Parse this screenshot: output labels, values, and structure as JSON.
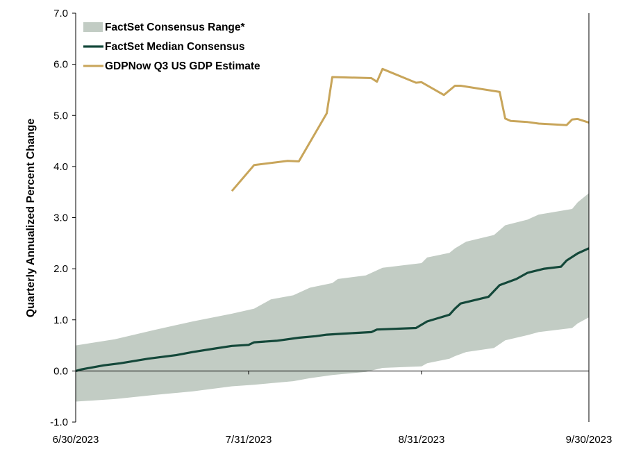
{
  "chart_data": {
    "type": "line",
    "title": "",
    "xlabel": "",
    "ylabel": "Quarterly Annualized Percent Change",
    "ylim": [
      -1.0,
      7.0
    ],
    "y_ticks": [
      "7.0",
      "6.0",
      "5.0",
      "4.0",
      "3.0",
      "2.0",
      "1.0",
      "0.0",
      "-1.0"
    ],
    "x_ticks": [
      "6/30/2023",
      "7/31/2023",
      "8/31/2023",
      "9/30/2023"
    ],
    "xlim": [
      "2023-06-30",
      "2023-09-30"
    ],
    "grid": false,
    "legend": {
      "placement": "top-left",
      "items": [
        {
          "label": "FactSet Consensus Range*",
          "kind": "area",
          "color": "#c2ccc4"
        },
        {
          "label": "FactSet Median Consensus",
          "kind": "line",
          "color": "#14483a"
        },
        {
          "label": "GDPNow Q3 US GDP Estimate",
          "kind": "line",
          "color": "#c8a55a"
        }
      ]
    },
    "series": [
      {
        "name": "FactSet Consensus Range*",
        "type": "area",
        "color": "#c2ccc4",
        "points": [
          {
            "x": "2023-06-30",
            "low": -0.6,
            "high": 0.5
          },
          {
            "x": "2023-07-07",
            "low": -0.55,
            "high": 0.62
          },
          {
            "x": "2023-07-14",
            "low": -0.47,
            "high": 0.8
          },
          {
            "x": "2023-07-21",
            "low": -0.4,
            "high": 0.97
          },
          {
            "x": "2023-07-28",
            "low": -0.3,
            "high": 1.12
          },
          {
            "x": "2023-08-01",
            "low": -0.27,
            "high": 1.22
          },
          {
            "x": "2023-08-04",
            "low": -0.24,
            "high": 1.4
          },
          {
            "x": "2023-08-08",
            "low": -0.2,
            "high": 1.48
          },
          {
            "x": "2023-08-11",
            "low": -0.14,
            "high": 1.63
          },
          {
            "x": "2023-08-15",
            "low": -0.08,
            "high": 1.72
          },
          {
            "x": "2023-08-16",
            "low": -0.07,
            "high": 1.8
          },
          {
            "x": "2023-08-21",
            "low": -0.02,
            "high": 1.87
          },
          {
            "x": "2023-08-24",
            "low": 0.06,
            "high": 2.02
          },
          {
            "x": "2023-08-31",
            "low": 0.09,
            "high": 2.11
          },
          {
            "x": "2023-09-01",
            "low": 0.15,
            "high": 2.22
          },
          {
            "x": "2023-09-05",
            "low": 0.24,
            "high": 2.31
          },
          {
            "x": "2023-09-06",
            "low": 0.29,
            "high": 2.4
          },
          {
            "x": "2023-09-08",
            "low": 0.37,
            "high": 2.53
          },
          {
            "x": "2023-09-13",
            "low": 0.45,
            "high": 2.66
          },
          {
            "x": "2023-09-15",
            "low": 0.6,
            "high": 2.85
          },
          {
            "x": "2023-09-19",
            "low": 0.7,
            "high": 2.96
          },
          {
            "x": "2023-09-21",
            "low": 0.76,
            "high": 3.06
          },
          {
            "x": "2023-09-27",
            "low": 0.84,
            "high": 3.17
          },
          {
            "x": "2023-09-28",
            "low": 0.93,
            "high": 3.3
          },
          {
            "x": "2023-09-30",
            "low": 1.05,
            "high": 3.48
          }
        ]
      },
      {
        "name": "FactSet Median Consensus",
        "type": "line",
        "color": "#14483a",
        "points": [
          {
            "x": "2023-06-30",
            "y": 0.0
          },
          {
            "x": "2023-07-01",
            "y": 0.03
          },
          {
            "x": "2023-07-05",
            "y": 0.11
          },
          {
            "x": "2023-07-08",
            "y": 0.15
          },
          {
            "x": "2023-07-13",
            "y": 0.24
          },
          {
            "x": "2023-07-18",
            "y": 0.31
          },
          {
            "x": "2023-07-21",
            "y": 0.37
          },
          {
            "x": "2023-07-25",
            "y": 0.44
          },
          {
            "x": "2023-07-28",
            "y": 0.49
          },
          {
            "x": "2023-07-31",
            "y": 0.51
          },
          {
            "x": "2023-08-01",
            "y": 0.56
          },
          {
            "x": "2023-08-05",
            "y": 0.59
          },
          {
            "x": "2023-08-09",
            "y": 0.65
          },
          {
            "x": "2023-08-12",
            "y": 0.68
          },
          {
            "x": "2023-08-14",
            "y": 0.71
          },
          {
            "x": "2023-08-17",
            "y": 0.73
          },
          {
            "x": "2023-08-22",
            "y": 0.76
          },
          {
            "x": "2023-08-23",
            "y": 0.81
          },
          {
            "x": "2023-08-30",
            "y": 0.84
          },
          {
            "x": "2023-09-01",
            "y": 0.97
          },
          {
            "x": "2023-09-05",
            "y": 1.1
          },
          {
            "x": "2023-09-06",
            "y": 1.22
          },
          {
            "x": "2023-09-07",
            "y": 1.32
          },
          {
            "x": "2023-09-12",
            "y": 1.45
          },
          {
            "x": "2023-09-14",
            "y": 1.68
          },
          {
            "x": "2023-09-17",
            "y": 1.8
          },
          {
            "x": "2023-09-19",
            "y": 1.92
          },
          {
            "x": "2023-09-22",
            "y": 2.0
          },
          {
            "x": "2023-09-25",
            "y": 2.04
          },
          {
            "x": "2023-09-26",
            "y": 2.16
          },
          {
            "x": "2023-09-28",
            "y": 2.3
          },
          {
            "x": "2023-09-30",
            "y": 2.4
          }
        ]
      },
      {
        "name": "GDPNow Q3 US GDP Estimate",
        "type": "line",
        "color": "#c8a55a",
        "points": [
          {
            "x": "2023-07-28",
            "y": 3.52
          },
          {
            "x": "2023-08-01",
            "y": 4.03
          },
          {
            "x": "2023-08-07",
            "y": 4.11
          },
          {
            "x": "2023-08-09",
            "y": 4.1
          },
          {
            "x": "2023-08-14",
            "y": 5.04
          },
          {
            "x": "2023-08-15",
            "y": 5.75
          },
          {
            "x": "2023-08-22",
            "y": 5.73
          },
          {
            "x": "2023-08-23",
            "y": 5.66
          },
          {
            "x": "2023-08-24",
            "y": 5.91
          },
          {
            "x": "2023-08-30",
            "y": 5.64
          },
          {
            "x": "2023-08-31",
            "y": 5.65
          },
          {
            "x": "2023-09-04",
            "y": 5.4
          },
          {
            "x": "2023-09-06",
            "y": 5.58
          },
          {
            "x": "2023-09-07",
            "y": 5.58
          },
          {
            "x": "2023-09-14",
            "y": 5.46
          },
          {
            "x": "2023-09-15",
            "y": 4.94
          },
          {
            "x": "2023-09-16",
            "y": 4.89
          },
          {
            "x": "2023-09-19",
            "y": 4.87
          },
          {
            "x": "2023-09-21",
            "y": 4.84
          },
          {
            "x": "2023-09-26",
            "y": 4.81
          },
          {
            "x": "2023-09-27",
            "y": 4.92
          },
          {
            "x": "2023-09-28",
            "y": 4.93
          },
          {
            "x": "2023-09-30",
            "y": 4.86
          }
        ]
      }
    ]
  }
}
